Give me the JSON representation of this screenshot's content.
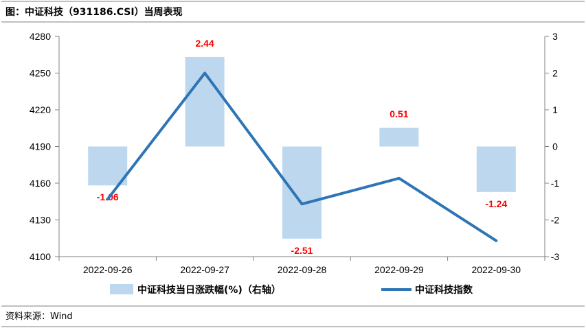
{
  "title": "图：中证科技（931186.CSI）当周表现",
  "source": "资料来源：Wind",
  "colors": {
    "bar": "#bdd7ee",
    "line": "#2e75b6",
    "label": "#ff0000",
    "border": "#7f7f7f"
  },
  "chart_data": {
    "type": "bar+line",
    "categories": [
      "2022-09-26",
      "2022-09-27",
      "2022-09-28",
      "2022-09-29",
      "2022-09-30"
    ],
    "series": [
      {
        "name": "中证科技当日涨跌幅(%)（右轴）",
        "type": "bar",
        "axis": "right",
        "values": [
          -1.06,
          2.44,
          -2.51,
          0.51,
          -1.24
        ],
        "labels": [
          "-1.06",
          "2.44",
          "-2.51",
          "0.51",
          "-1.24"
        ]
      },
      {
        "name": "中证科技指数",
        "type": "line",
        "axis": "left",
        "values": [
          4147,
          4250,
          4143,
          4164,
          4113
        ]
      }
    ],
    "left_axis": {
      "ylim": [
        4100,
        4280
      ],
      "ticks": [
        "4280",
        "4250",
        "4220",
        "4190",
        "4160",
        "4130",
        "4100"
      ]
    },
    "right_axis": {
      "ylim": [
        -3,
        3
      ],
      "ticks": [
        "3",
        "2",
        "1",
        "0",
        "-1",
        "-2",
        "-3"
      ]
    },
    "legend_position": "bottom",
    "grid": false
  }
}
